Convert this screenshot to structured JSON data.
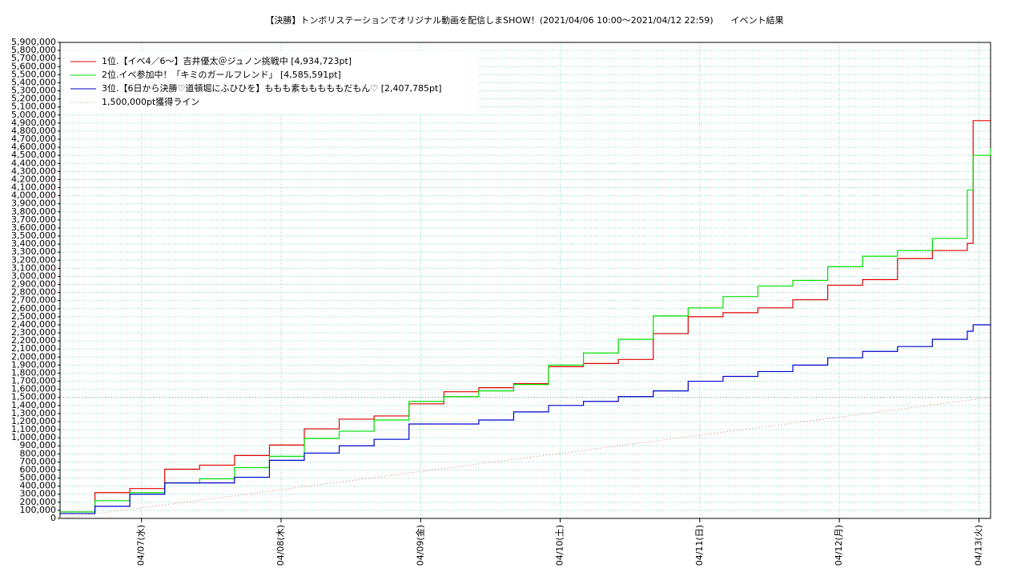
{
  "chart_data": {
    "type": "line",
    "step": true,
    "title": "【決勝】トンボリステーションでオリジナル動画を配信しまSHOW！(2021/04/06 10:00〜2021/04/12 22:59)　　イベント結果",
    "x": [
      0,
      6,
      12,
      18,
      24,
      30,
      36,
      42,
      48,
      54,
      60,
      66,
      72,
      78,
      84,
      90,
      96,
      102,
      108,
      114,
      120,
      126,
      132,
      138,
      144,
      150,
      156,
      157,
      160
    ],
    "series": [
      {
        "name": "1位.【イベ4／6〜】吉井優太＠ジュノン挑戦中 [4,934,723pt]",
        "color": "#e00000",
        "values": [
          80000,
          320000,
          370000,
          610000,
          660000,
          780000,
          910000,
          1110000,
          1230000,
          1270000,
          1420000,
          1570000,
          1620000,
          1670000,
          1880000,
          1920000,
          1970000,
          2290000,
          2500000,
          2550000,
          2610000,
          2710000,
          2890000,
          2960000,
          3220000,
          3320000,
          3410000,
          4930000,
          4930000
        ]
      },
      {
        "name": "2位.イベ参加中！「キミのガールフレンド」 [4,585,591pt]",
        "color": "#00e000",
        "values": [
          80000,
          220000,
          320000,
          440000,
          490000,
          630000,
          770000,
          990000,
          1080000,
          1220000,
          1450000,
          1510000,
          1580000,
          1660000,
          1900000,
          2050000,
          2220000,
          2510000,
          2610000,
          2750000,
          2880000,
          2950000,
          3120000,
          3250000,
          3320000,
          3470000,
          4070000,
          4500000,
          4590000
        ]
      },
      {
        "name": "3位.【6日から決勝♡道頓堀にふひひを】ももも素もももももだもん♡ [2,407,785pt]",
        "color": "#0000cc",
        "values": [
          60000,
          150000,
          300000,
          440000,
          440000,
          510000,
          720000,
          810000,
          900000,
          980000,
          1170000,
          1170000,
          1220000,
          1320000,
          1400000,
          1450000,
          1510000,
          1580000,
          1700000,
          1760000,
          1820000,
          1900000,
          1990000,
          2070000,
          2130000,
          2220000,
          2320000,
          2400000,
          2410000
        ]
      }
    ],
    "reference": {
      "name": "1,500,000pt獲得ライン",
      "color": "#e08060",
      "x": [
        0,
        160
      ],
      "values": [
        0,
        1500000
      ],
      "level": 1500000
    },
    "xlim": [
      0,
      160
    ],
    "xticks": [
      {
        "value": 14,
        "label": "04/07(水)"
      },
      {
        "value": 38,
        "label": "04/08(木)"
      },
      {
        "value": 62,
        "label": "04/09(金)"
      },
      {
        "value": 86,
        "label": "04/10(土)"
      },
      {
        "value": 110,
        "label": "04/11(日)"
      },
      {
        "value": 134,
        "label": "04/12(月)"
      },
      {
        "value": 158,
        "label": "04/13(火)"
      }
    ],
    "ylim": [
      0,
      5900000
    ],
    "yticks": [
      0,
      {
        "value": 100000,
        "label": "100,000"
      },
      {
        "value": 200000,
        "label": "200,000"
      },
      {
        "value": 300000,
        "label": "300,000"
      },
      {
        "value": 400000,
        "label": "400,000"
      },
      {
        "value": 500000,
        "label": "500,000"
      },
      {
        "value": 600000,
        "label": "600,000"
      },
      {
        "value": 700000,
        "label": "700,000"
      },
      {
        "value": 800000,
        "label": "800,000"
      },
      {
        "value": 900000,
        "label": "900,000"
      },
      {
        "value": 1000000,
        "label": "1,000,000"
      },
      {
        "value": 1100000,
        "label": "1,100,000"
      },
      {
        "value": 1200000,
        "label": "1,200,000"
      },
      {
        "value": 1300000,
        "label": "1,300,000"
      },
      {
        "value": 1400000,
        "label": "1,400,000"
      },
      {
        "value": 1500000,
        "label": "1,500,000"
      },
      {
        "value": 1600000,
        "label": "1,600,000"
      },
      {
        "value": 1700000,
        "label": "1,700,000"
      },
      {
        "value": 1800000,
        "label": "1,800,000"
      },
      {
        "value": 1900000,
        "label": "1,900,000"
      },
      {
        "value": 2000000,
        "label": "2,000,000"
      },
      {
        "value": 2100000,
        "label": "2,100,000"
      },
      {
        "value": 2200000,
        "label": "2,200,000"
      },
      {
        "value": 2300000,
        "label": "2,300,000"
      },
      {
        "value": 2400000,
        "label": "2,400,000"
      },
      {
        "value": 2500000,
        "label": "2,500,000"
      },
      {
        "value": 2600000,
        "label": "2,600,000"
      },
      {
        "value": 2700000,
        "label": "2,700,000"
      },
      {
        "value": 2800000,
        "label": "2,800,000"
      },
      {
        "value": 2900000,
        "label": "2,900,000"
      },
      {
        "value": 3000000,
        "label": "3,000,000"
      },
      {
        "value": 3100000,
        "label": "3,100,000"
      },
      {
        "value": 3200000,
        "label": "3,200,000"
      },
      {
        "value": 3300000,
        "label": "3,300,000"
      },
      {
        "value": 3400000,
        "label": "3,400,000"
      },
      {
        "value": 3500000,
        "label": "3,500,000"
      },
      {
        "value": 3600000,
        "label": "3,600,000"
      },
      {
        "value": 3700000,
        "label": "3,700,000"
      },
      {
        "value": 3800000,
        "label": "3,800,000"
      },
      {
        "value": 3900000,
        "label": "3,900,000"
      },
      {
        "value": 4000000,
        "label": "4,000,000"
      },
      {
        "value": 4100000,
        "label": "4,100,000"
      },
      {
        "value": 4200000,
        "label": "4,200,000"
      },
      {
        "value": 4300000,
        "label": "4,300,000"
      },
      {
        "value": 4400000,
        "label": "4,400,000"
      },
      {
        "value": 4500000,
        "label": "4,500,000"
      },
      {
        "value": 4600000,
        "label": "4,600,000"
      },
      {
        "value": 4700000,
        "label": "4,700,000"
      },
      {
        "value": 4800000,
        "label": "4,800,000"
      },
      {
        "value": 4900000,
        "label": "4,900,000"
      },
      {
        "value": 5000000,
        "label": "5,000,000"
      },
      {
        "value": 5100000,
        "label": "5,100,000"
      },
      {
        "value": 5200000,
        "label": "5,200,000"
      },
      {
        "value": 5300000,
        "label": "5,300,000"
      },
      {
        "value": 5400000,
        "label": "5,400,000"
      },
      {
        "value": 5500000,
        "label": "5,500,000"
      },
      {
        "value": 5600000,
        "label": "5,600,000"
      },
      {
        "value": 5700000,
        "label": "5,700,000"
      },
      {
        "value": 5800000,
        "label": "5,800,000"
      },
      {
        "value": 5900000,
        "label": "5,900,000"
      }
    ],
    "grid": true,
    "legend": "upper left"
  }
}
